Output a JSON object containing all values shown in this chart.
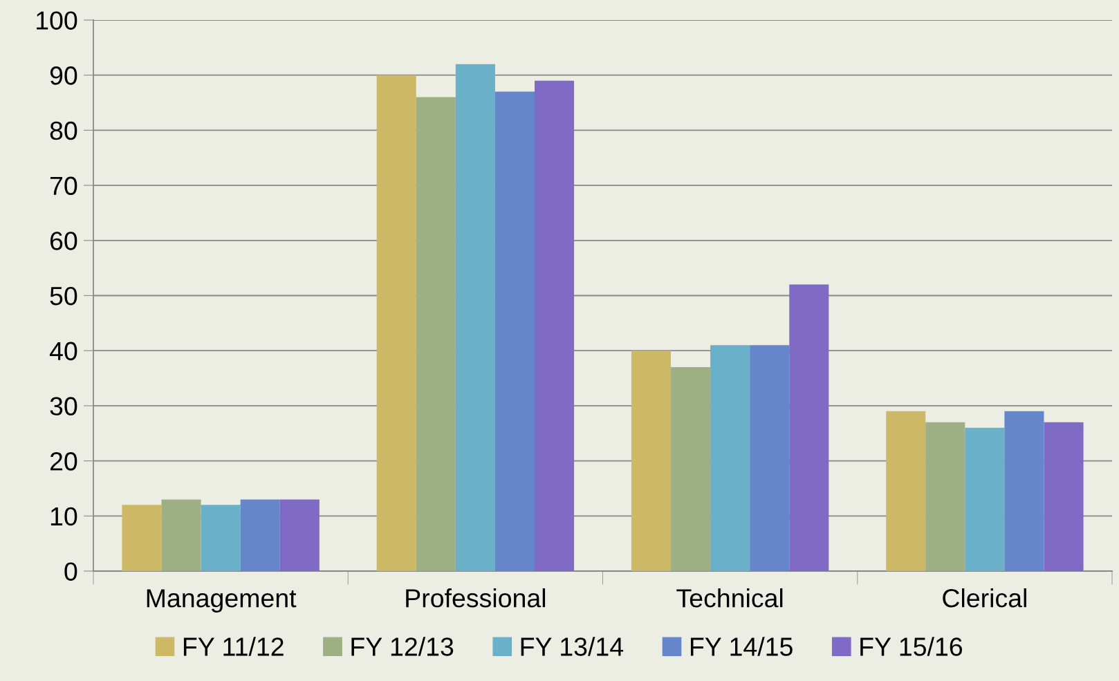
{
  "chart_data": {
    "type": "bar",
    "categories": [
      "Management",
      "Professional",
      "Technical",
      "Clerical"
    ],
    "series": [
      {
        "name": "FY 11/12",
        "color": "#cdb866",
        "values": [
          12,
          90,
          40,
          29
        ]
      },
      {
        "name": "FY 12/13",
        "color": "#9daf83",
        "values": [
          13,
          86,
          37,
          27
        ]
      },
      {
        "name": "FY 13/14",
        "color": "#6ab0c8",
        "values": [
          12,
          92,
          41,
          26
        ]
      },
      {
        "name": "FY 14/15",
        "color": "#6686cc",
        "values": [
          13,
          87,
          41,
          29
        ]
      },
      {
        "name": "FY 15/16",
        "color": "#7f6ac6",
        "values": [
          13,
          89,
          52,
          27
        ]
      }
    ],
    "ylim": [
      0,
      100
    ],
    "yticks": [
      0,
      10,
      20,
      30,
      40,
      50,
      60,
      70,
      80,
      90,
      100
    ],
    "grid": "y",
    "legend": "bottom"
  }
}
